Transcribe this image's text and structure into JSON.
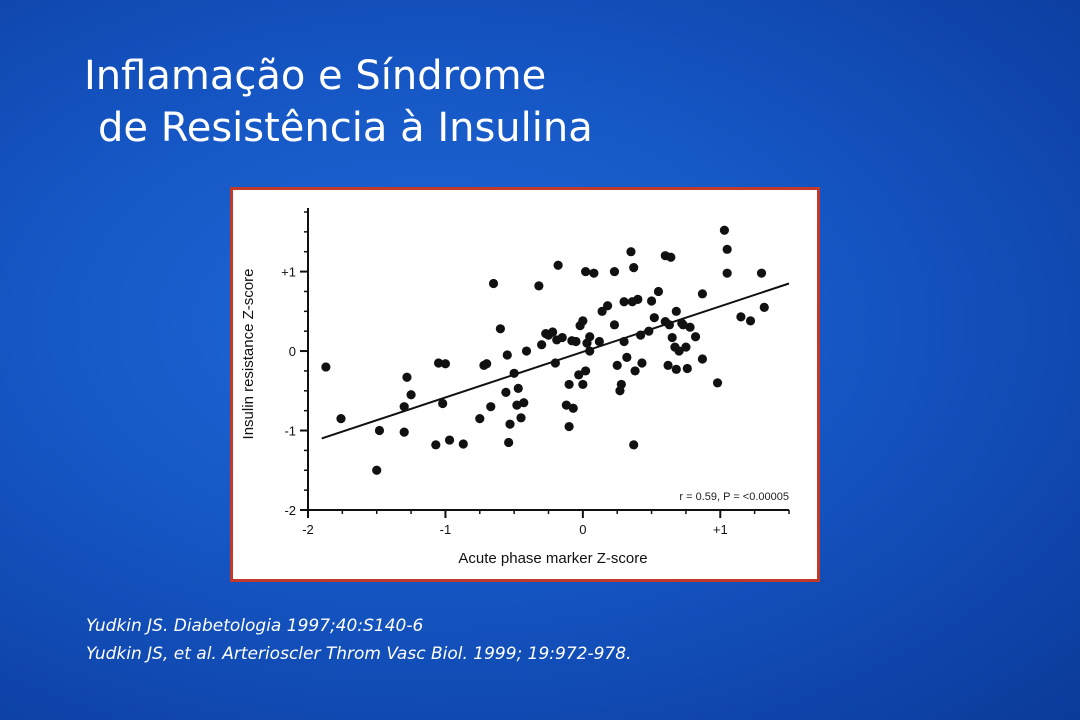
{
  "slide": {
    "title_line1": "Inflamação e Síndrome",
    "title_line2": "de Resistência à Insulina",
    "references": [
      "Yudkin JS. Diabetologia 1997;40:S140-6",
      "Yudkin JS, et al. Arterioscler Throm Vasc Biol. 1999; 19:972-978."
    ]
  },
  "colors": {
    "background": "#1556c4",
    "frame": "#c0392b",
    "points": "#111111"
  },
  "chart_data": {
    "type": "scatter",
    "xlabel": "Acute phase marker Z-score",
    "ylabel": "Insulin resistance Z-score",
    "xlim": [
      -2,
      1.5
    ],
    "ylim": [
      -2,
      1.8
    ],
    "x_ticks": [
      -2,
      -1,
      0,
      1
    ],
    "x_tick_labels": [
      "-2",
      "-1",
      "0",
      "+1"
    ],
    "y_ticks": [
      -2,
      -1,
      0,
      1
    ],
    "y_tick_labels": [
      "-2",
      "-1",
      "0",
      "+1"
    ],
    "annotation": "r = 0.59, P = <0.00005",
    "grid": false,
    "regression_line": {
      "x": [
        -1.9,
        1.5
      ],
      "y": [
        -1.1,
        0.85
      ]
    },
    "points": [
      {
        "x": -1.87,
        "y": -0.2
      },
      {
        "x": -1.76,
        "y": -0.85
      },
      {
        "x": -1.5,
        "y": -1.5
      },
      {
        "x": -1.48,
        "y": -1.0
      },
      {
        "x": -1.3,
        "y": -1.02
      },
      {
        "x": -1.3,
        "y": -0.7
      },
      {
        "x": -1.28,
        "y": -0.33
      },
      {
        "x": -1.25,
        "y": -0.55
      },
      {
        "x": -1.07,
        "y": -1.18
      },
      {
        "x": -1.05,
        "y": -0.15
      },
      {
        "x": -1.02,
        "y": -0.66
      },
      {
        "x": -1.0,
        "y": -0.16
      },
      {
        "x": -0.97,
        "y": -1.12
      },
      {
        "x": -0.87,
        "y": -1.17
      },
      {
        "x": -0.75,
        "y": -0.85
      },
      {
        "x": -0.72,
        "y": -0.18
      },
      {
        "x": -0.7,
        "y": -0.16
      },
      {
        "x": -0.67,
        "y": -0.7
      },
      {
        "x": -0.65,
        "y": 0.85
      },
      {
        "x": -0.6,
        "y": 0.28
      },
      {
        "x": -0.56,
        "y": -0.52
      },
      {
        "x": -0.55,
        "y": -0.05
      },
      {
        "x": -0.54,
        "y": -1.15
      },
      {
        "x": -0.53,
        "y": -0.92
      },
      {
        "x": -0.5,
        "y": -0.28
      },
      {
        "x": -0.48,
        "y": -0.68
      },
      {
        "x": -0.47,
        "y": -0.47
      },
      {
        "x": -0.45,
        "y": -0.84
      },
      {
        "x": -0.43,
        "y": -0.65
      },
      {
        "x": -0.41,
        "y": 0.0
      },
      {
        "x": -0.32,
        "y": 0.82
      },
      {
        "x": -0.3,
        "y": 0.08
      },
      {
        "x": -0.27,
        "y": 0.22
      },
      {
        "x": -0.25,
        "y": 0.2
      },
      {
        "x": -0.22,
        "y": 0.24
      },
      {
        "x": -0.2,
        "y": -0.15
      },
      {
        "x": -0.19,
        "y": 0.14
      },
      {
        "x": -0.18,
        "y": 1.08
      },
      {
        "x": -0.15,
        "y": 0.17
      },
      {
        "x": -0.12,
        "y": -0.68
      },
      {
        "x": -0.1,
        "y": -0.95
      },
      {
        "x": -0.1,
        "y": -0.42
      },
      {
        "x": -0.08,
        "y": 0.13
      },
      {
        "x": -0.07,
        "y": -0.72
      },
      {
        "x": -0.05,
        "y": 0.12
      },
      {
        "x": -0.03,
        "y": -0.3
      },
      {
        "x": -0.02,
        "y": 0.32
      },
      {
        "x": 0.0,
        "y": 0.38
      },
      {
        "x": 0.0,
        "y": -0.42
      },
      {
        "x": 0.02,
        "y": 1.0
      },
      {
        "x": 0.02,
        "y": -0.25
      },
      {
        "x": 0.03,
        "y": 0.1
      },
      {
        "x": 0.05,
        "y": 0.0
      },
      {
        "x": 0.05,
        "y": 0.18
      },
      {
        "x": 0.08,
        "y": 0.98
      },
      {
        "x": 0.12,
        "y": 0.12
      },
      {
        "x": 0.14,
        "y": 0.5
      },
      {
        "x": 0.18,
        "y": 0.57
      },
      {
        "x": 0.23,
        "y": 0.33
      },
      {
        "x": 0.23,
        "y": 1.0
      },
      {
        "x": 0.25,
        "y": -0.18
      },
      {
        "x": 0.27,
        "y": -0.5
      },
      {
        "x": 0.28,
        "y": -0.42
      },
      {
        "x": 0.3,
        "y": 0.12
      },
      {
        "x": 0.3,
        "y": 0.62
      },
      {
        "x": 0.32,
        "y": -0.08
      },
      {
        "x": 0.35,
        "y": 1.25
      },
      {
        "x": 0.36,
        "y": 0.62
      },
      {
        "x": 0.37,
        "y": 1.05
      },
      {
        "x": 0.37,
        "y": -1.18
      },
      {
        "x": 0.38,
        "y": -0.25
      },
      {
        "x": 0.4,
        "y": 0.65
      },
      {
        "x": 0.42,
        "y": 0.2
      },
      {
        "x": 0.43,
        "y": -0.15
      },
      {
        "x": 0.48,
        "y": 0.25
      },
      {
        "x": 0.5,
        "y": 0.63
      },
      {
        "x": 0.52,
        "y": 0.42
      },
      {
        "x": 0.55,
        "y": 0.75
      },
      {
        "x": 0.6,
        "y": 1.2
      },
      {
        "x": 0.6,
        "y": 0.37
      },
      {
        "x": 0.62,
        "y": -0.18
      },
      {
        "x": 0.63,
        "y": 0.33
      },
      {
        "x": 0.64,
        "y": 1.18
      },
      {
        "x": 0.65,
        "y": 0.17
      },
      {
        "x": 0.67,
        "y": 0.05
      },
      {
        "x": 0.68,
        "y": -0.23
      },
      {
        "x": 0.68,
        "y": 0.5
      },
      {
        "x": 0.7,
        "y": 0.0
      },
      {
        "x": 0.72,
        "y": 0.35
      },
      {
        "x": 0.73,
        "y": 0.33
      },
      {
        "x": 0.75,
        "y": 0.05
      },
      {
        "x": 0.76,
        "y": -0.22
      },
      {
        "x": 0.78,
        "y": 0.3
      },
      {
        "x": 0.82,
        "y": 0.18
      },
      {
        "x": 0.87,
        "y": -0.1
      },
      {
        "x": 0.87,
        "y": 0.72
      },
      {
        "x": 0.98,
        "y": -0.4
      },
      {
        "x": 1.03,
        "y": 1.52
      },
      {
        "x": 1.05,
        "y": 1.28
      },
      {
        "x": 1.05,
        "y": 0.98
      },
      {
        "x": 1.15,
        "y": 0.43
      },
      {
        "x": 1.22,
        "y": 0.38
      },
      {
        "x": 1.3,
        "y": 0.98
      },
      {
        "x": 1.32,
        "y": 0.55
      }
    ]
  }
}
